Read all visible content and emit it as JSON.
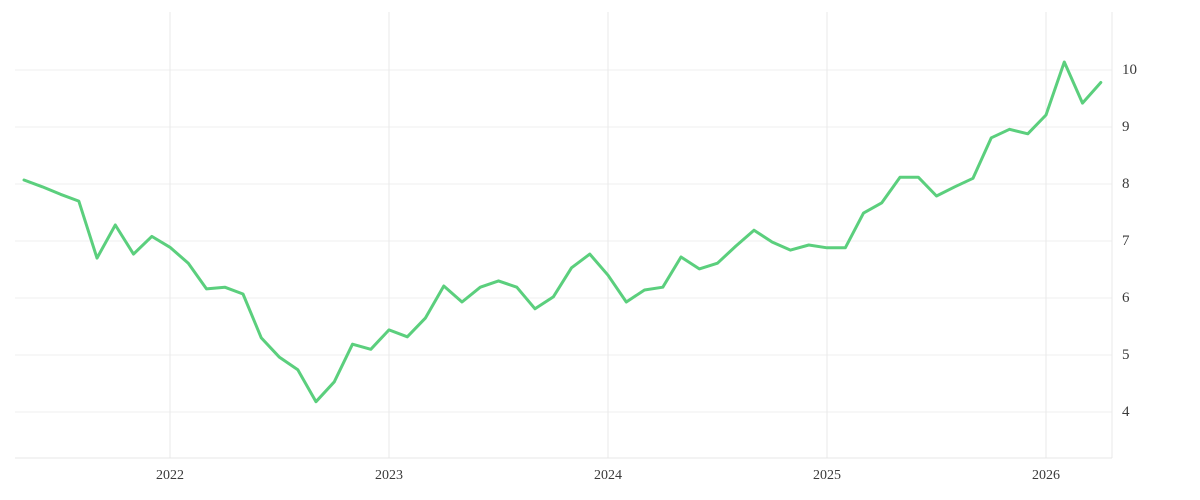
{
  "colors": {
    "line": "#5bcf7d",
    "grid_horizontal": "#efefef",
    "grid_vertical": "#e8e8e8",
    "axis_line": "#e7e7e7",
    "tick_text": "#3a3a3a",
    "background": "#ffffff"
  },
  "chart_data": {
    "type": "line",
    "title": "",
    "xlabel": "",
    "ylabel": "",
    "legend": false,
    "grid": true,
    "x": [
      "2021-05",
      "2021-06",
      "2021-07",
      "2021-08",
      "2021-09",
      "2021-10",
      "2021-11",
      "2021-12",
      "2022-01",
      "2022-02",
      "2022-03",
      "2022-04",
      "2022-05",
      "2022-06",
      "2022-07",
      "2022-08",
      "2022-09",
      "2022-10",
      "2022-11",
      "2022-12",
      "2023-01",
      "2023-02",
      "2023-03",
      "2023-04",
      "2023-05",
      "2023-06",
      "2023-07",
      "2023-08",
      "2023-09",
      "2023-10",
      "2023-11",
      "2023-12",
      "2024-01",
      "2024-02",
      "2024-03",
      "2024-04",
      "2024-05",
      "2024-06",
      "2024-07",
      "2024-08",
      "2024-09",
      "2024-10",
      "2024-11",
      "2024-12",
      "2025-01",
      "2025-02",
      "2025-03",
      "2025-04",
      "2025-05",
      "2025-06",
      "2025-07",
      "2025-08",
      "2025-09",
      "2025-10",
      "2025-11",
      "2025-12",
      "2026-01",
      "2026-02",
      "2026-03",
      "2026-04"
    ],
    "series": [
      {
        "name": "value",
        "values": [
          8.07,
          7.95,
          7.82,
          7.7,
          6.7,
          7.28,
          6.77,
          7.08,
          6.89,
          6.61,
          6.16,
          6.19,
          6.07,
          5.3,
          4.96,
          4.74,
          4.18,
          4.53,
          5.19,
          5.1,
          5.44,
          5.32,
          5.65,
          6.21,
          5.93,
          6.19,
          6.3,
          6.19,
          5.81,
          6.02,
          6.53,
          6.77,
          6.4,
          5.93,
          6.14,
          6.19,
          6.72,
          6.51,
          6.61,
          6.91,
          7.19,
          6.98,
          6.84,
          6.93,
          6.88,
          6.88,
          7.49,
          7.67,
          8.12,
          8.12,
          7.79,
          7.95,
          8.1,
          8.81,
          8.96,
          8.88,
          9.21,
          10.14,
          9.42,
          9.78
        ]
      }
    ],
    "y_axis": {
      "ticks": [
        4,
        5,
        6,
        7,
        8,
        9,
        10
      ],
      "side": "right",
      "ylim": [
        3.2,
        11.0
      ]
    },
    "x_axis": {
      "tick_labels": [
        "2022",
        "2023",
        "2024",
        "2025",
        "2026"
      ],
      "tick_point_indices": [
        8,
        20,
        32,
        44,
        56
      ]
    }
  }
}
